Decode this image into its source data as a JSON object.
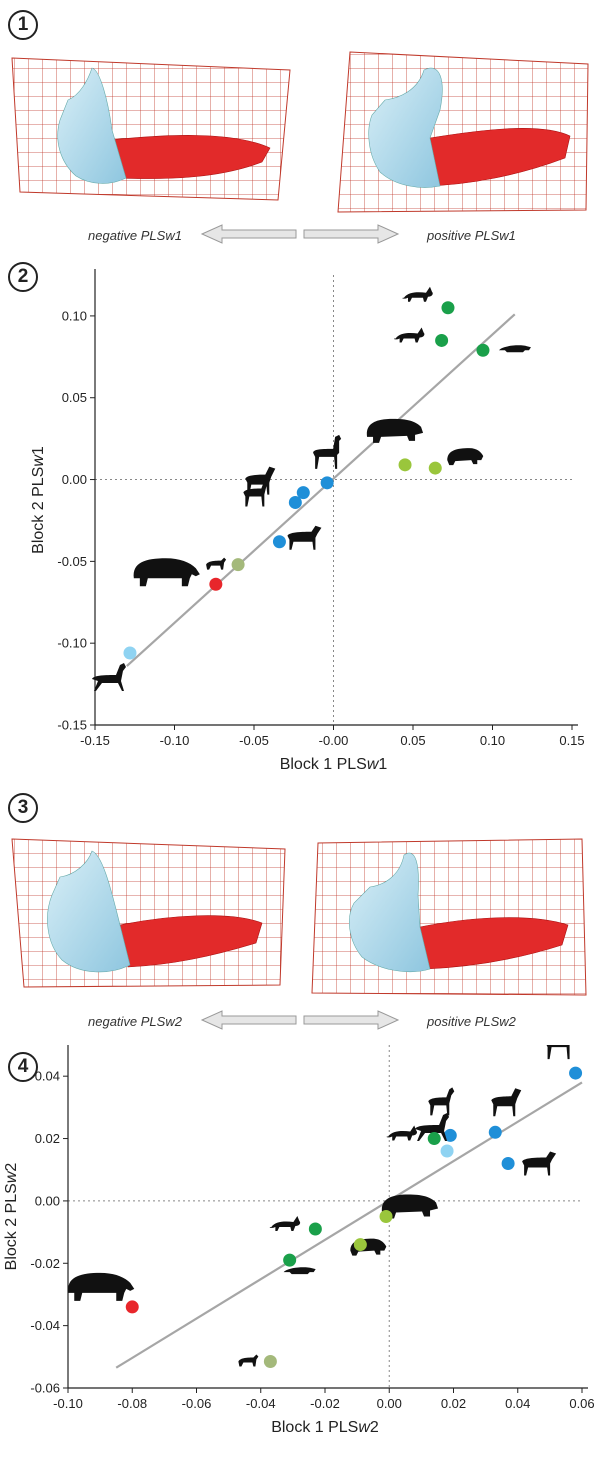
{
  "panels": [
    {
      "number": "1",
      "caption_negative": "negative PLSw1",
      "caption_positive": "positive PLSw1"
    },
    {
      "number": "2"
    },
    {
      "number": "3",
      "caption_negative": "negative PLSw2",
      "caption_positive": "positive PLSw2"
    },
    {
      "number": "4"
    }
  ],
  "colors": {
    "red": "#e8262b",
    "dark_green": "#1aa04a",
    "light_green": "#9ac63c",
    "olive": "#a4b97b",
    "blue": "#1f8fd8",
    "light_blue": "#8fd3f2",
    "line": "#a6a6a6",
    "mesh": "#c0392b"
  },
  "chart_data": [
    {
      "type": "scatter",
      "xlabel_prefix": "Block 1 PLS",
      "xlabel_italic": "w",
      "xlabel_suffix": "1",
      "ylabel_prefix": "Block 2 PLS",
      "ylabel_italic": "w",
      "ylabel_suffix": "1",
      "xlim": [
        -0.15,
        0.15
      ],
      "ylim": [
        -0.15,
        0.125
      ],
      "xticks": [
        -0.15,
        -0.1,
        -0.05,
        -0.0,
        0.05,
        0.1,
        0.15
      ],
      "xtick_labels": [
        "-0.15",
        "-0.10",
        "-0.05",
        "-0.00",
        "0.05",
        "0.10",
        "0.15"
      ],
      "yticks": [
        -0.15,
        -0.1,
        -0.05,
        0.0,
        0.05,
        0.1
      ],
      "ytick_labels": [
        "-0.15",
        "-0.10",
        "-0.05",
        "0.00",
        "0.05",
        "0.10"
      ],
      "reference_lines": {
        "x": 0,
        "y": 0
      },
      "regression_line": {
        "x": [
          -0.13,
          0.114
        ],
        "y": [
          -0.114,
          0.101
        ]
      },
      "points": [
        {
          "x": 0.072,
          "y": 0.105,
          "color": "dark_green",
          "icon": "fox-icon"
        },
        {
          "x": 0.068,
          "y": 0.085,
          "color": "dark_green",
          "icon": "fox-icon"
        },
        {
          "x": 0.094,
          "y": 0.079,
          "color": "dark_green",
          "icon": "weasel-icon"
        },
        {
          "x": 0.045,
          "y": 0.009,
          "color": "light_green",
          "icon": "hippo-icon"
        },
        {
          "x": 0.064,
          "y": 0.007,
          "color": "light_green",
          "icon": "pygmy-hippo-icon"
        },
        {
          "x": -0.004,
          "y": -0.002,
          "color": "blue",
          "icon": "llama-icon"
        },
        {
          "x": -0.019,
          "y": -0.008,
          "color": "blue",
          "icon": "horse-icon"
        },
        {
          "x": -0.024,
          "y": -0.014,
          "color": "blue",
          "icon": "deer-icon"
        },
        {
          "x": -0.034,
          "y": -0.038,
          "color": "blue",
          "icon": "zebra-icon"
        },
        {
          "x": -0.06,
          "y": -0.052,
          "color": "olive",
          "icon": "mouse-deer-icon"
        },
        {
          "x": -0.074,
          "y": -0.064,
          "color": "red",
          "icon": "tapir-icon"
        },
        {
          "x": -0.128,
          "y": -0.106,
          "color": "light_blue",
          "icon": "vicuna-icon"
        }
      ]
    },
    {
      "type": "scatter",
      "xlabel_prefix": "Block 1 PLS",
      "xlabel_italic": "w",
      "xlabel_suffix": "2",
      "ylabel_prefix": "Block 2 PLS",
      "ylabel_italic": "w",
      "ylabel_suffix": "2",
      "xlim": [
        -0.1,
        0.06
      ],
      "ylim": [
        -0.06,
        0.05
      ],
      "xticks": [
        -0.1,
        -0.08,
        -0.06,
        -0.04,
        -0.02,
        0.0,
        0.02,
        0.04,
        0.06
      ],
      "xtick_labels": [
        "-0.10",
        "-0.08",
        "-0.06",
        "-0.04",
        "-0.02",
        "0.00",
        "0.02",
        "0.04",
        "0.06"
      ],
      "yticks": [
        -0.06,
        -0.04,
        -0.02,
        0.0,
        0.02,
        0.04
      ],
      "ytick_labels": [
        "-0.06",
        "-0.04",
        "-0.02",
        "0.00",
        "0.02",
        "0.04"
      ],
      "reference_lines": {
        "x": 0,
        "y": 0
      },
      "regression_line": {
        "x": [
          -0.085,
          0.06
        ],
        "y": [
          -0.0535,
          0.038
        ]
      },
      "points": [
        {
          "x": 0.058,
          "y": 0.041,
          "color": "blue",
          "icon": "llama-icon"
        },
        {
          "x": 0.033,
          "y": 0.022,
          "color": "blue",
          "icon": "horse-icon"
        },
        {
          "x": 0.037,
          "y": 0.012,
          "color": "blue",
          "icon": "zebra-icon"
        },
        {
          "x": 0.019,
          "y": 0.021,
          "color": "blue",
          "icon": "deer-icon"
        },
        {
          "x": 0.018,
          "y": 0.016,
          "color": "light_blue",
          "icon": "vicuna-icon"
        },
        {
          "x": 0.014,
          "y": 0.02,
          "color": "dark_green",
          "icon": "fox-icon"
        },
        {
          "x": -0.023,
          "y": -0.009,
          "color": "dark_green",
          "icon": "fox-icon"
        },
        {
          "x": -0.031,
          "y": -0.019,
          "color": "dark_green",
          "icon": "weasel-icon"
        },
        {
          "x": -0.001,
          "y": -0.005,
          "color": "light_green",
          "icon": "hippo-icon"
        },
        {
          "x": -0.009,
          "y": -0.014,
          "color": "light_green",
          "icon": "pygmy-hippo-icon"
        },
        {
          "x": -0.08,
          "y": -0.034,
          "color": "red",
          "icon": "tapir-icon"
        },
        {
          "x": -0.037,
          "y": -0.0515,
          "color": "olive",
          "icon": "mouse-deer-icon"
        }
      ]
    }
  ]
}
